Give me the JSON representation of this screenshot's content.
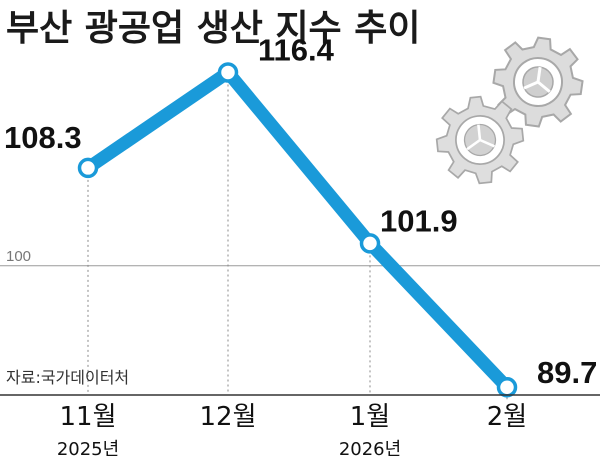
{
  "title": "부산 광공업 생산 지수 추이",
  "source": "자료:국가데이터처",
  "colors": {
    "line": "#1a9ad9",
    "marker_fill": "#ffffff",
    "reference_line": "#9a9a9a",
    "gear": "#d9d9d9",
    "gear_stroke": "#a8a8a8"
  },
  "icons": [
    "gear-icon-large",
    "gear-icon-small"
  ],
  "chart_data": {
    "type": "line",
    "title": "부산 광공업 생산 지수 추이",
    "x": [
      "11월",
      "12월",
      "1월",
      "2월"
    ],
    "x_year_labels": [
      "2025년",
      "",
      "2026년",
      ""
    ],
    "series": [
      {
        "values": [
          108.3,
          116.4,
          101.9,
          89.7
        ]
      }
    ],
    "data_labels": [
      "108.3",
      "116.4",
      "101.9",
      "89.7"
    ],
    "reference_line": {
      "value": 100,
      "label": "100"
    },
    "ylim": [
      82,
      120
    ],
    "grid": false,
    "legend": "none"
  }
}
